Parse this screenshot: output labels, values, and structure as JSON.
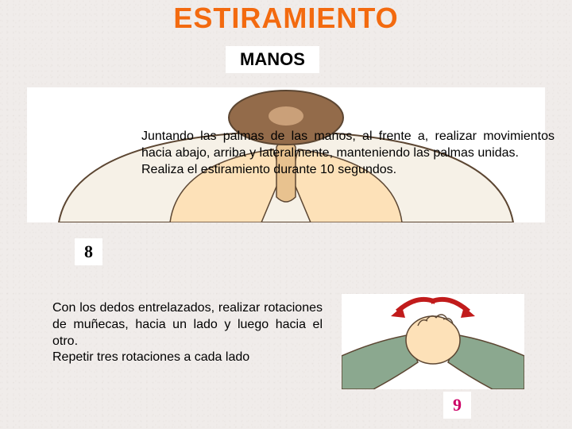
{
  "title": {
    "text": "ESTIRAMIENTO",
    "color": "#f36a0f"
  },
  "subtitle": {
    "text": "MANOS",
    "color": "#000000"
  },
  "exercise_a": {
    "number": "8",
    "number_color": "#000000",
    "paragraph": "Juntando las palmas de las manos, al frente a, realizar movimientos hacia abajo, arriba y lateralmente, manteniendo las palmas unidas.\nRealiza el estiramiento durante 10 segundos.",
    "text_color": "#000000",
    "illustration": {
      "skin": "#fde1b8",
      "skin_shadow": "#e8c28f",
      "shirt": "#f6f1e7",
      "hair": "#936b4a",
      "outline": "#5c4632",
      "bg": "#ffffff"
    }
  },
  "exercise_b": {
    "number": "9",
    "number_color": "#cc0066",
    "paragraph": "Con los dedos entrelazados, realizar rotaciones de muñecas, hacia un lado y luego hacia el otro.\nRepetir tres rotaciones a cada lado",
    "text_color": "#000000",
    "illustration": {
      "skin": "#fde1b8",
      "shirt": "#8ba88f",
      "outline": "#5c4632",
      "arrow": "#c11b1b",
      "bg": "#ffffff"
    }
  },
  "page_bg": "#f0ecea"
}
